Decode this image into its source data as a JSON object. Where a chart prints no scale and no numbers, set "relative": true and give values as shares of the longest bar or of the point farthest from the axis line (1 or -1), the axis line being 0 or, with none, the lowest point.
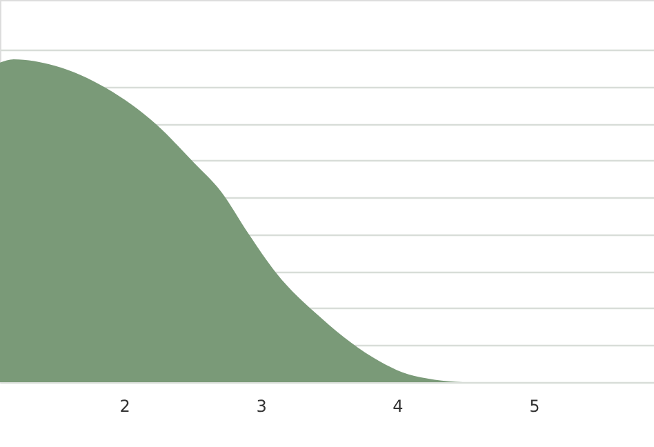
{
  "chart_data": {
    "type": "area",
    "relative": true,
    "color": "#7a9a78",
    "x": [
      1.09,
      1.19,
      1.49,
      1.87,
      2.23,
      2.51,
      2.71,
      2.91,
      3.11,
      3.44,
      3.79,
      4.12,
      4.53,
      5.88
    ],
    "values": [
      0.99,
      1,
      0.98,
      0.91,
      0.8,
      0.68,
      0.59,
      0.46,
      0.34,
      0.2,
      0.085,
      0.02,
      0,
      0
    ],
    "xlim": [
      1.09,
      5.88
    ],
    "xticks": [
      2,
      3,
      4,
      5
    ],
    "grid": "y"
  }
}
